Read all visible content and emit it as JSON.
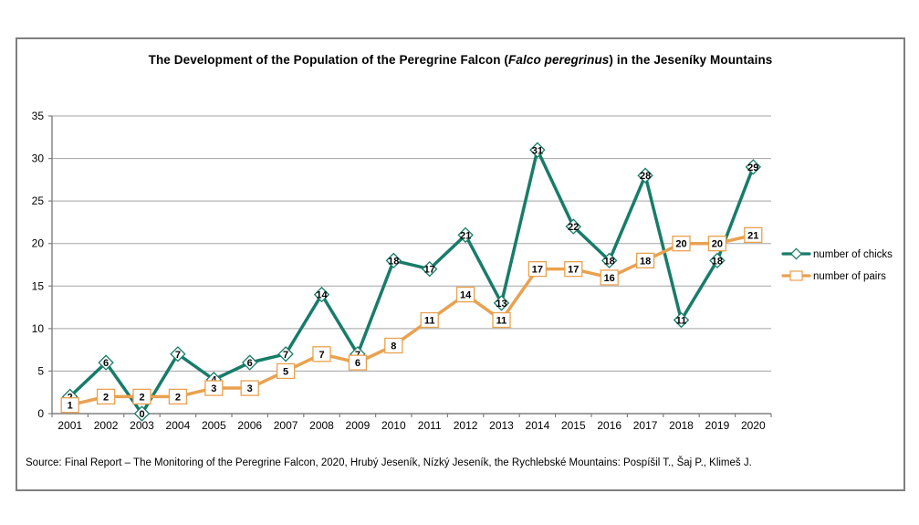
{
  "chart_data": {
    "type": "line",
    "title_prefix": "The Development of the Population of the Peregrine Falcon (",
    "title_italic": "Falco peregrinus",
    "title_suffix": ") in the Jeseníky Mountains",
    "categories": [
      "2001",
      "2002",
      "2003",
      "2004",
      "2005",
      "2006",
      "2007",
      "2008",
      "2009",
      "2010",
      "2011",
      "2012",
      "2013",
      "2014",
      "2015",
      "2016",
      "2017",
      "2018",
      "2019",
      "2020"
    ],
    "series": [
      {
        "name": "number of chicks",
        "color": "#177c68",
        "marker": "diamond",
        "values": [
          2,
          6,
          0,
          7,
          4,
          6,
          7,
          14,
          7,
          18,
          17,
          21,
          13,
          31,
          22,
          18,
          28,
          11,
          18,
          29
        ]
      },
      {
        "name": "number of pairs",
        "color": "#e9a14f",
        "marker": "square",
        "values": [
          1,
          2,
          2,
          2,
          3,
          3,
          5,
          7,
          6,
          8,
          11,
          14,
          11,
          17,
          17,
          16,
          18,
          20,
          20,
          21
        ]
      }
    ],
    "xlabel": "",
    "ylabel": "",
    "ylim": [
      0,
      35
    ],
    "ytick_interval": 5,
    "grid": true,
    "legend_position": "right",
    "data_labels": true,
    "source": "Source: Final Report – The Monitoring of the Peregrine Falcon, 2020, Hrubý Jeseník, Nízký Jeseník, the Rychlebské Mountains: Pospíšil T., Šaj P., Klimeš J."
  },
  "colors": {
    "gridline": "#a3a3a3",
    "axis": "#7f7f7f",
    "frame_border": "#7f7f7f",
    "label_text": "#000000",
    "marker_fill": "#ffffff"
  }
}
